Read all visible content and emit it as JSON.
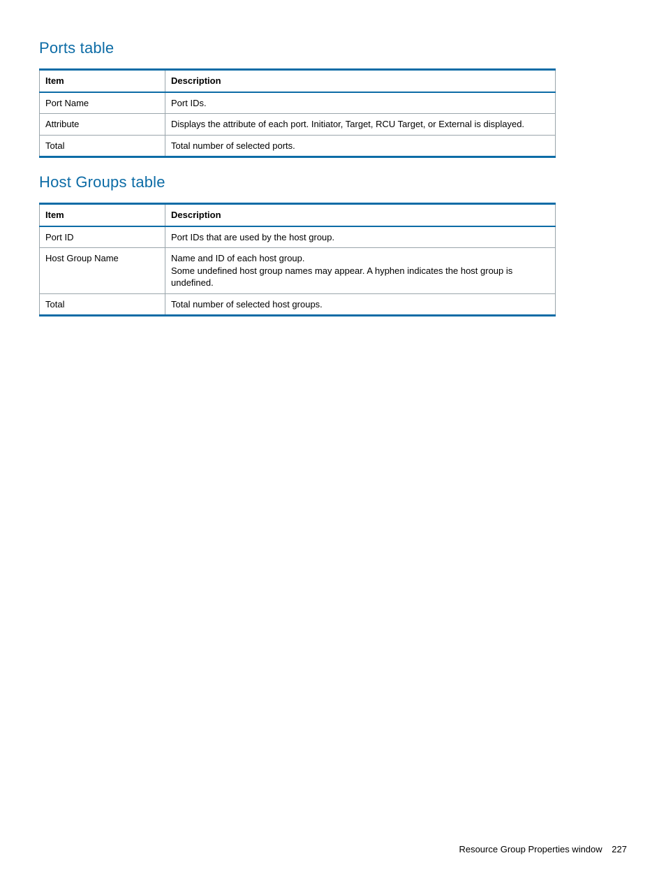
{
  "colors": {
    "heading_color": "#0d6ca6",
    "table_border_accent": "#0d6ca6",
    "table_cell_border": "#9aa5ab",
    "text_color": "#000000",
    "background": "#ffffff"
  },
  "typography": {
    "heading_fontsize_pt": 16,
    "body_fontsize_pt": 10,
    "heading_weight": "400",
    "header_cell_weight": "700"
  },
  "sections": {
    "ports": {
      "heading": "Ports table",
      "columns": [
        "Item",
        "Description"
      ],
      "rows": [
        [
          "Port Name",
          "Port IDs."
        ],
        [
          "Attribute",
          "Displays the attribute of each port. Initiator, Target, RCU Target, or External is displayed."
        ],
        [
          "Total",
          "Total number of selected ports."
        ]
      ]
    },
    "host_groups": {
      "heading": "Host Groups table",
      "columns": [
        "Item",
        "Description"
      ],
      "rows": [
        [
          "Port ID",
          "Port IDs that are used by the host group."
        ],
        [
          "Host Group Name",
          "Name and ID of each host group.\nSome undefined host group names may appear. A hyphen indicates the host group is undefined."
        ],
        [
          "Total",
          "Total number of selected host groups."
        ]
      ]
    }
  },
  "footer": {
    "text": "Resource Group Properties window",
    "page_number": "227"
  }
}
